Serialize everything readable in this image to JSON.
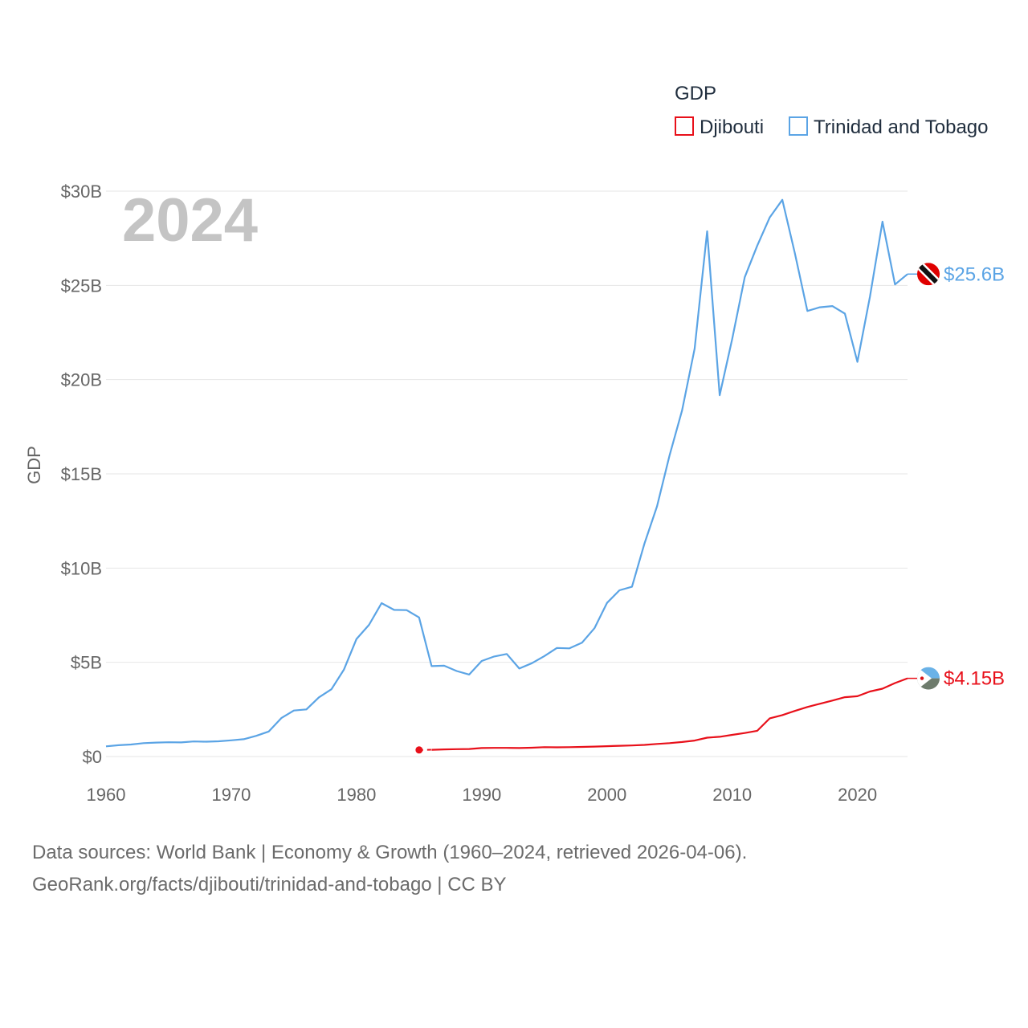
{
  "chart_data": {
    "type": "line",
    "title": "",
    "year_label": "2024",
    "xlabel": "",
    "ylabel": "GDP",
    "legend_title": "GDP",
    "legend_position": "top-right",
    "xlim": [
      1960,
      2024
    ],
    "ylim": [
      0,
      30
    ],
    "x_ticks": [
      1960,
      1970,
      1980,
      1990,
      2000,
      2010,
      2020
    ],
    "y_ticks": [
      {
        "value": 0,
        "label": "$0"
      },
      {
        "value": 5,
        "label": "$5B"
      },
      {
        "value": 10,
        "label": "$10B"
      },
      {
        "value": 15,
        "label": "$15B"
      },
      {
        "value": 20,
        "label": "$20B"
      },
      {
        "value": 25,
        "label": "$25B"
      },
      {
        "value": 30,
        "label": "$30B"
      }
    ],
    "unit": "billions USD",
    "series": [
      {
        "name": "Djibouti",
        "color": "#e8101a",
        "end_label": "$4.15B",
        "flag_icon": "djibouti-flag-icon",
        "x": [
          1985,
          1986,
          1987,
          1988,
          1989,
          1990,
          1991,
          1992,
          1993,
          1994,
          1995,
          1996,
          1997,
          1998,
          1999,
          2000,
          2001,
          2002,
          2003,
          2004,
          2005,
          2006,
          2007,
          2008,
          2009,
          2010,
          2011,
          2012,
          2013,
          2014,
          2015,
          2016,
          2017,
          2018,
          2019,
          2020,
          2021,
          2022,
          2023,
          2024
        ],
        "values": [
          0.35,
          0.36,
          0.38,
          0.39,
          0.4,
          0.45,
          0.46,
          0.46,
          0.45,
          0.47,
          0.5,
          0.49,
          0.5,
          0.51,
          0.53,
          0.55,
          0.57,
          0.59,
          0.62,
          0.67,
          0.71,
          0.77,
          0.85,
          1.0,
          1.05,
          1.15,
          1.25,
          1.37,
          2.03,
          2.2,
          2.42,
          2.63,
          2.8,
          2.97,
          3.15,
          3.2,
          3.45,
          3.6,
          3.9,
          4.15
        ]
      },
      {
        "name": "Trinidad and Tobago",
        "color": "#5ba4e5",
        "end_label": "$25.6B",
        "flag_icon": "trinidad-and-tobago-flag-icon",
        "x": [
          1960,
          1961,
          1962,
          1963,
          1964,
          1965,
          1966,
          1967,
          1968,
          1969,
          1970,
          1971,
          1972,
          1973,
          1974,
          1975,
          1976,
          1977,
          1978,
          1979,
          1980,
          1981,
          1982,
          1983,
          1984,
          1985,
          1986,
          1987,
          1988,
          1989,
          1990,
          1991,
          1992,
          1993,
          1994,
          1995,
          1996,
          1997,
          1998,
          1999,
          2000,
          2001,
          2002,
          2003,
          2004,
          2005,
          2006,
          2007,
          2008,
          2009,
          2010,
          2011,
          2012,
          2013,
          2014,
          2015,
          2016,
          2017,
          2018,
          2019,
          2020,
          2021,
          2022,
          2023,
          2024
        ],
        "values": [
          0.54,
          0.6,
          0.64,
          0.71,
          0.74,
          0.76,
          0.75,
          0.8,
          0.79,
          0.81,
          0.86,
          0.92,
          1.1,
          1.33,
          2.04,
          2.44,
          2.5,
          3.14,
          3.57,
          4.62,
          6.24,
          6.99,
          8.14,
          7.78,
          7.77,
          7.38,
          4.8,
          4.82,
          4.54,
          4.35,
          5.07,
          5.31,
          5.44,
          4.67,
          4.95,
          5.33,
          5.76,
          5.74,
          6.04,
          6.81,
          8.15,
          8.82,
          9.01,
          11.31,
          13.28,
          15.98,
          18.37,
          21.64,
          27.87,
          19.17,
          22.16,
          25.43,
          27.11,
          28.61,
          29.54,
          26.71,
          23.64,
          23.84,
          23.9,
          23.5,
          20.94,
          24.4,
          28.38,
          25.05,
          25.6
        ]
      }
    ]
  },
  "footer": {
    "line1": "Data sources: World Bank | Economy & Growth (1960–2024, retrieved 2026-04-06).",
    "line2": "GeoRank.org/facts/djibouti/trinidad-and-tobago | CC BY"
  }
}
